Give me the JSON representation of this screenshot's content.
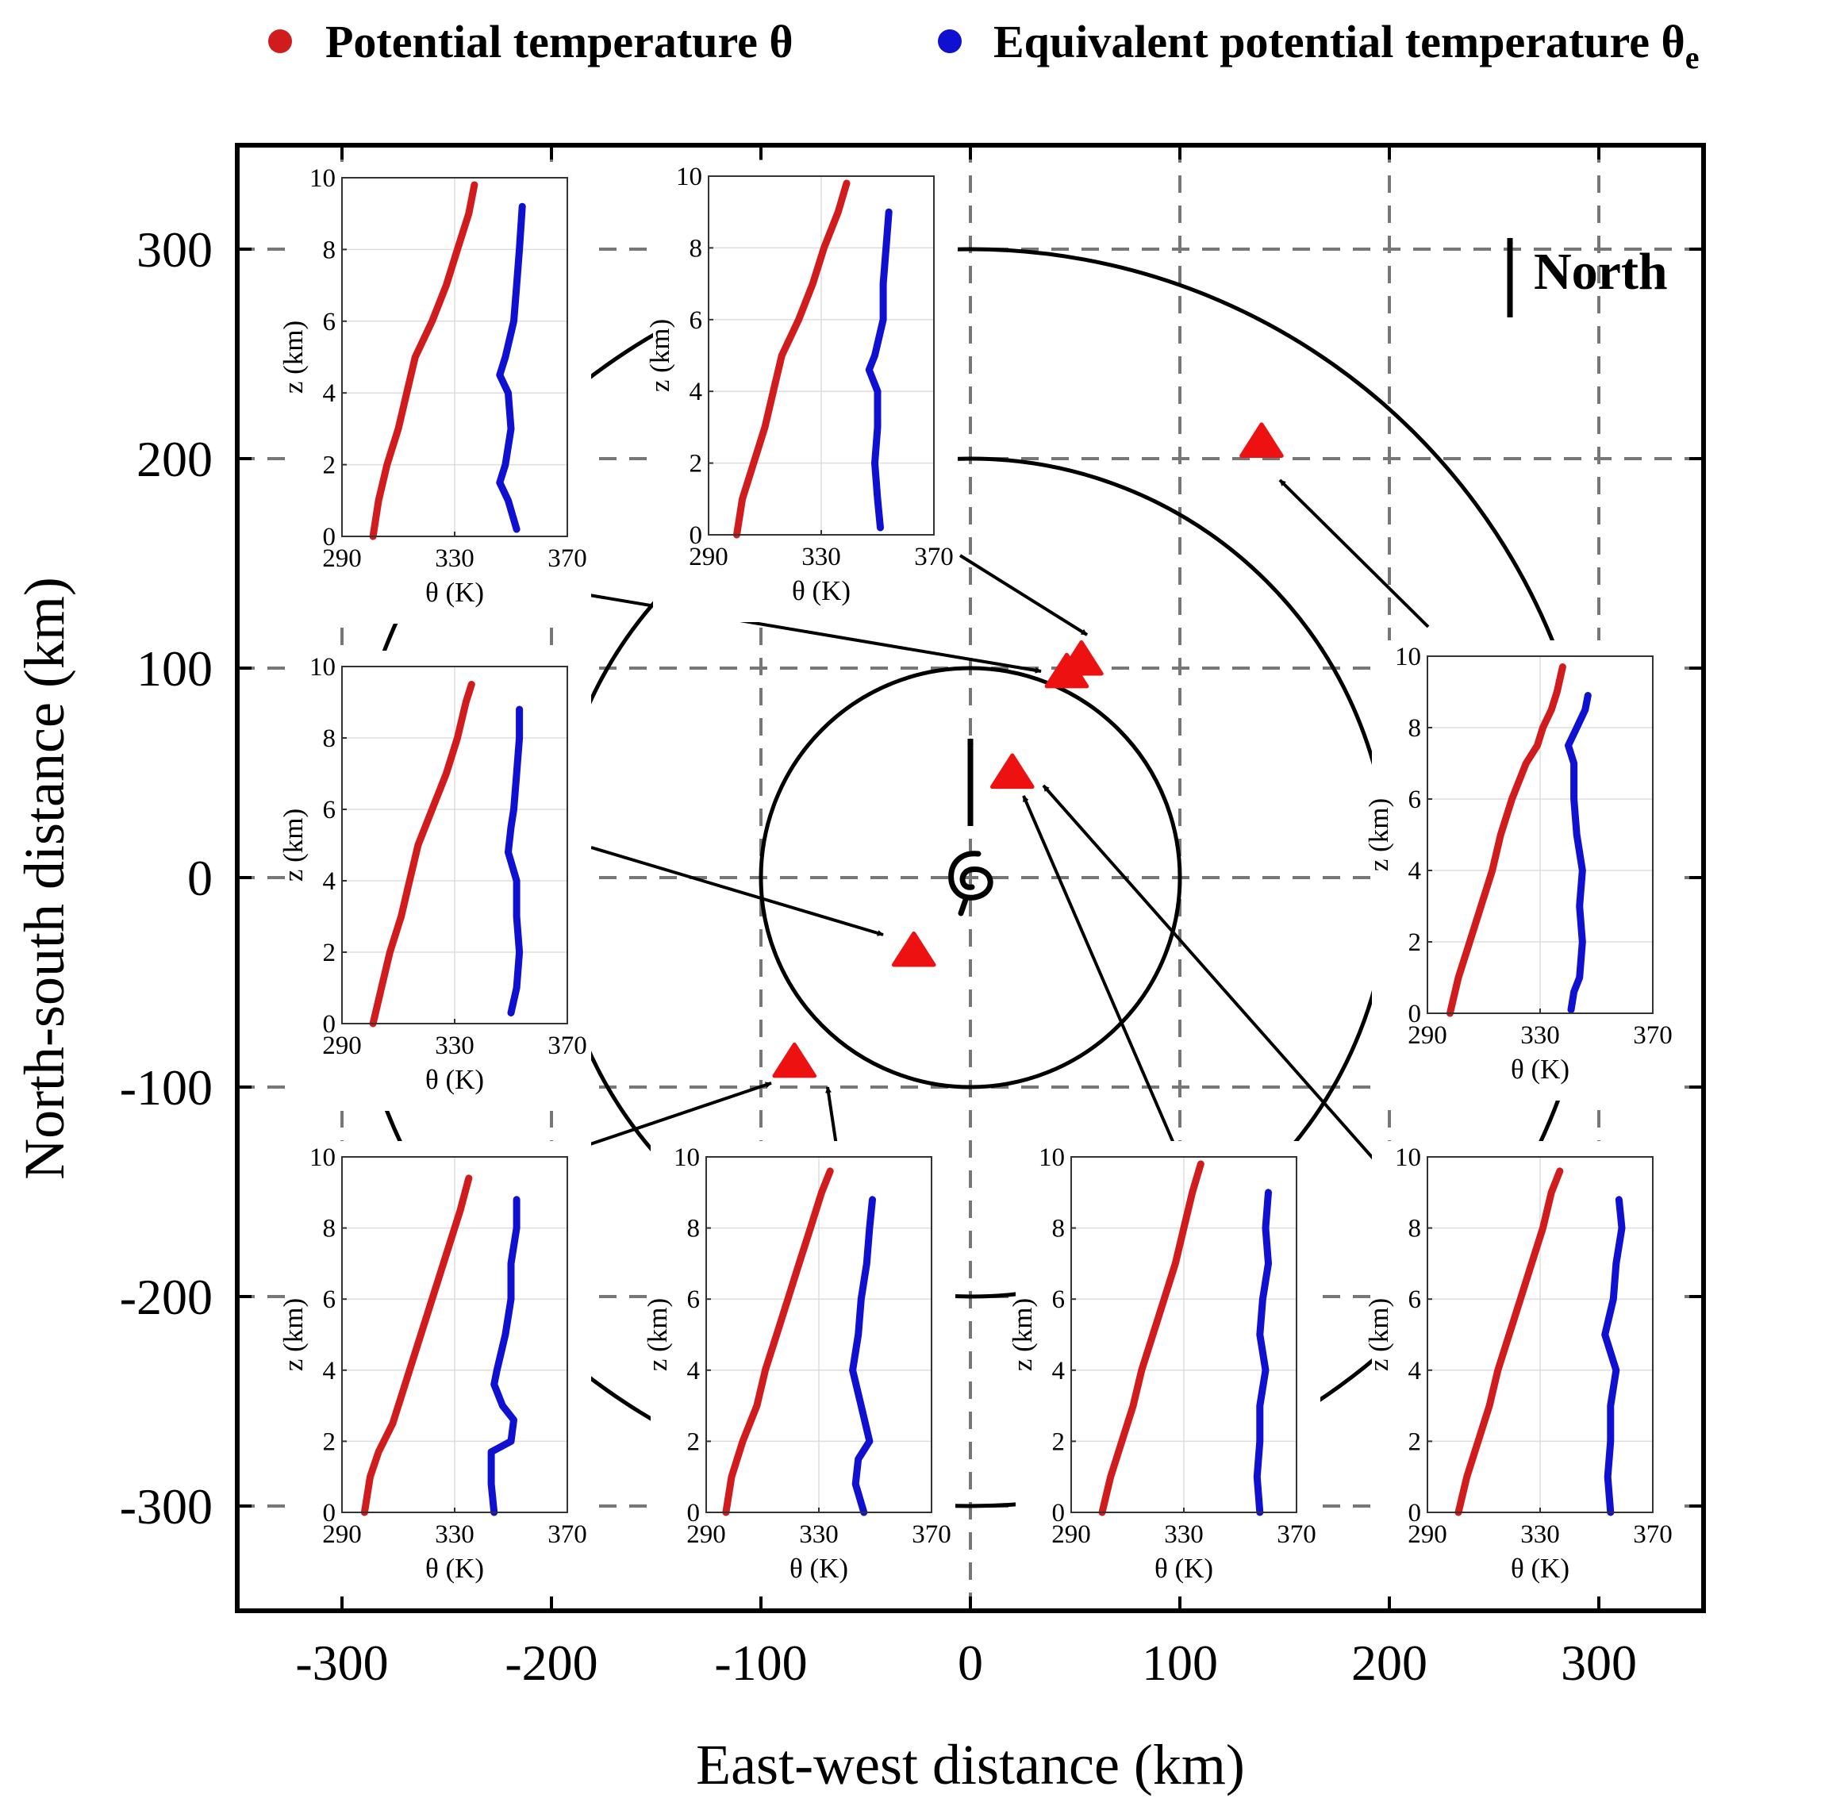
{
  "legend": {
    "theta_label": "Potential temperature θ",
    "theta_e_label": "Equivalent potential temperature θ",
    "theta_e_subscript": "e"
  },
  "colors": {
    "theta": "#d01c1c",
    "theta_e": "#1010d0",
    "marker": "#ee1111",
    "grid": "#777777",
    "axes": "#000000"
  },
  "north_label": "North",
  "chart_data": {
    "type": "scatter",
    "title": "",
    "xlabel": "East-west distance (km)",
    "ylabel": "North-south distance (km)",
    "xlim": [
      -350,
      350
    ],
    "ylim": [
      -350,
      350
    ],
    "xticks": [
      -300,
      -200,
      -100,
      0,
      100,
      200,
      300
    ],
    "yticks": [
      -300,
      -200,
      -100,
      0,
      100,
      200,
      300
    ],
    "grid_values": [
      -300,
      -200,
      -100,
      0,
      100,
      200,
      300
    ],
    "range_circles_km": [
      100,
      200,
      300
    ],
    "storm_center": [
      0,
      0
    ],
    "storm_motion": "north",
    "markers": [
      {
        "id": "m1",
        "x": 139,
        "y": 208
      },
      {
        "id": "m2",
        "x": 53,
        "y": 104
      },
      {
        "id": "m3",
        "x": 46,
        "y": 98
      },
      {
        "id": "m4",
        "x": 20,
        "y": 50
      },
      {
        "id": "m5",
        "x": -27,
        "y": -35
      },
      {
        "id": "m6",
        "x": -84,
        "y": -88
      }
    ],
    "insets": [
      {
        "id": "A",
        "marker": "m3",
        "xlabel": "θ (K)",
        "ylabel": "z (km)",
        "xticks": [
          290,
          330,
          370
        ],
        "yticks": [
          0,
          2,
          4,
          6,
          8,
          10
        ],
        "xlim": [
          290,
          370
        ],
        "ylim": [
          0,
          10
        ],
        "theta": [
          [
            301,
            0
          ],
          [
            303,
            1
          ],
          [
            306,
            2
          ],
          [
            310,
            3
          ],
          [
            313,
            4
          ],
          [
            316,
            5
          ],
          [
            322,
            6
          ],
          [
            327,
            7
          ],
          [
            331,
            8
          ],
          [
            335,
            9
          ],
          [
            337,
            9.8
          ]
        ],
        "theta_e": [
          [
            352,
            0.2
          ],
          [
            349,
            1
          ],
          [
            346,
            1.5
          ],
          [
            348,
            2
          ],
          [
            350,
            3
          ],
          [
            349,
            4
          ],
          [
            346,
            4.5
          ],
          [
            348,
            5
          ],
          [
            351,
            6
          ],
          [
            352,
            7
          ],
          [
            353,
            8
          ],
          [
            354,
            9.2
          ]
        ]
      },
      {
        "id": "B",
        "marker": "m2",
        "xlabel": "θ (K)",
        "ylabel": "z (km)",
        "xticks": [
          290,
          330,
          370
        ],
        "yticks": [
          0,
          2,
          4,
          6,
          8,
          10
        ],
        "xlim": [
          290,
          370
        ],
        "ylim": [
          0,
          10
        ],
        "theta": [
          [
            300,
            0
          ],
          [
            302,
            1
          ],
          [
            306,
            2
          ],
          [
            310,
            3
          ],
          [
            313,
            4
          ],
          [
            316,
            5
          ],
          [
            322,
            6
          ],
          [
            327,
            7
          ],
          [
            331,
            8
          ],
          [
            336,
            9
          ],
          [
            339,
            9.8
          ]
        ],
        "theta_e": [
          [
            351,
            0.2
          ],
          [
            350,
            1
          ],
          [
            349,
            2
          ],
          [
            350,
            3
          ],
          [
            350,
            4
          ],
          [
            347,
            4.6
          ],
          [
            349,
            5
          ],
          [
            352,
            6
          ],
          [
            352,
            7
          ],
          [
            353,
            8
          ],
          [
            354,
            9
          ]
        ]
      },
      {
        "id": "C",
        "marker": "m5",
        "xlabel": "θ (K)",
        "ylabel": "z (km)",
        "xticks": [
          290,
          330,
          370
        ],
        "yticks": [
          0,
          2,
          4,
          6,
          8,
          10
        ],
        "xlim": [
          290,
          370
        ],
        "ylim": [
          0,
          10
        ],
        "theta": [
          [
            301,
            0
          ],
          [
            304,
            1
          ],
          [
            307,
            2
          ],
          [
            311,
            3
          ],
          [
            314,
            4
          ],
          [
            317,
            5
          ],
          [
            322,
            6
          ],
          [
            327,
            7
          ],
          [
            331,
            8
          ],
          [
            334,
            9
          ],
          [
            336,
            9.5
          ]
        ],
        "theta_e": [
          [
            350,
            0.3
          ],
          [
            352,
            1
          ],
          [
            353,
            2
          ],
          [
            352,
            3
          ],
          [
            352,
            4
          ],
          [
            349,
            4.8
          ],
          [
            350,
            5.5
          ],
          [
            351,
            6
          ],
          [
            352,
            7
          ],
          [
            353,
            8
          ],
          [
            353,
            8.8
          ]
        ]
      },
      {
        "id": "D",
        "marker": "m1",
        "xlabel": "θ (K)",
        "ylabel": "z (km)",
        "xticks": [
          290,
          330,
          370
        ],
        "yticks": [
          0,
          2,
          4,
          6,
          8,
          10
        ],
        "xlim": [
          290,
          370
        ],
        "ylim": [
          0,
          10
        ],
        "theta": [
          [
            298,
            0
          ],
          [
            301,
            1
          ],
          [
            305,
            2
          ],
          [
            309,
            3
          ],
          [
            313,
            4
          ],
          [
            316,
            5
          ],
          [
            320,
            6
          ],
          [
            325,
            7
          ],
          [
            329,
            7.5
          ],
          [
            331,
            8
          ],
          [
            334,
            8.5
          ],
          [
            336,
            9
          ],
          [
            338,
            9.7
          ]
        ],
        "theta_e": [
          [
            341,
            0.1
          ],
          [
            342,
            0.6
          ],
          [
            344,
            1
          ],
          [
            345,
            2
          ],
          [
            344,
            3
          ],
          [
            345,
            4
          ],
          [
            343,
            5
          ],
          [
            342,
            6
          ],
          [
            342,
            7
          ],
          [
            340,
            7.5
          ],
          [
            343,
            8
          ],
          [
            346,
            8.5
          ],
          [
            347,
            8.9
          ]
        ]
      },
      {
        "id": "E",
        "marker": "m6",
        "xlabel": "θ (K)",
        "ylabel": "z (km)",
        "xticks": [
          290,
          330,
          370
        ],
        "yticks": [
          0,
          2,
          4,
          6,
          8,
          10
        ],
        "xlim": [
          290,
          370
        ],
        "ylim": [
          0,
          10
        ],
        "theta": [
          [
            298,
            0
          ],
          [
            300,
            1
          ],
          [
            303,
            1.7
          ],
          [
            308,
            2.5
          ],
          [
            312,
            3.5
          ],
          [
            316,
            4.5
          ],
          [
            320,
            5.5
          ],
          [
            324,
            6.5
          ],
          [
            328,
            7.5
          ],
          [
            332,
            8.5
          ],
          [
            335,
            9.4
          ]
        ],
        "theta_e": [
          [
            344,
            0
          ],
          [
            343,
            0.8
          ],
          [
            343,
            1.7
          ],
          [
            350,
            2
          ],
          [
            351,
            2.6
          ],
          [
            347,
            3
          ],
          [
            344,
            3.6
          ],
          [
            345,
            4
          ],
          [
            348,
            5
          ],
          [
            350,
            6
          ],
          [
            350,
            7
          ],
          [
            352,
            8
          ],
          [
            352,
            8.8
          ]
        ]
      },
      {
        "id": "F",
        "marker": "m6",
        "xlabel": "θ (K)",
        "ylabel": "z (km)",
        "xticks": [
          290,
          330,
          370
        ],
        "yticks": [
          0,
          2,
          4,
          6,
          8,
          10
        ],
        "xlim": [
          290,
          370
        ],
        "ylim": [
          0,
          10
        ],
        "theta": [
          [
            297,
            0
          ],
          [
            299,
            1
          ],
          [
            303,
            2
          ],
          [
            308,
            3
          ],
          [
            311,
            4
          ],
          [
            315,
            5
          ],
          [
            319,
            6
          ],
          [
            323,
            7
          ],
          [
            327,
            8
          ],
          [
            331,
            9
          ],
          [
            334,
            9.6
          ]
        ],
        "theta_e": [
          [
            346,
            0
          ],
          [
            343,
            0.8
          ],
          [
            344,
            1.5
          ],
          [
            348,
            2
          ],
          [
            345,
            3
          ],
          [
            342,
            4
          ],
          [
            344,
            5
          ],
          [
            345,
            6
          ],
          [
            347,
            7
          ],
          [
            348,
            8
          ],
          [
            349,
            8.8
          ]
        ]
      },
      {
        "id": "G",
        "marker": "m4",
        "xlabel": "θ (K)",
        "ylabel": "z (km)",
        "xticks": [
          290,
          330,
          370
        ],
        "yticks": [
          0,
          2,
          4,
          6,
          8,
          10
        ],
        "xlim": [
          290,
          370
        ],
        "ylim": [
          0,
          10
        ],
        "theta": [
          [
            301,
            0
          ],
          [
            304,
            1
          ],
          [
            308,
            2
          ],
          [
            312,
            3
          ],
          [
            315,
            4
          ],
          [
            319,
            5
          ],
          [
            323,
            6
          ],
          [
            327,
            7
          ],
          [
            330,
            8
          ],
          [
            333,
            9
          ],
          [
            336,
            9.8
          ]
        ],
        "theta_e": [
          [
            357,
            0
          ],
          [
            356,
            1
          ],
          [
            357,
            2
          ],
          [
            357,
            3
          ],
          [
            359,
            4
          ],
          [
            357,
            5
          ],
          [
            358,
            6
          ],
          [
            360,
            7
          ],
          [
            359,
            8
          ],
          [
            360,
            9
          ]
        ]
      },
      {
        "id": "H",
        "marker": "m4",
        "xlabel": "θ (K)",
        "ylabel": "z (km)",
        "xticks": [
          290,
          330,
          370
        ],
        "yticks": [
          0,
          2,
          4,
          6,
          8,
          10
        ],
        "xlim": [
          290,
          370
        ],
        "ylim": [
          0,
          10
        ],
        "theta": [
          [
            301,
            0
          ],
          [
            304,
            1
          ],
          [
            308,
            2
          ],
          [
            312,
            3
          ],
          [
            315,
            4
          ],
          [
            319,
            5
          ],
          [
            323,
            6
          ],
          [
            327,
            7
          ],
          [
            331,
            8
          ],
          [
            334,
            9
          ],
          [
            337,
            9.6
          ]
        ],
        "theta_e": [
          [
            355,
            0
          ],
          [
            354,
            1
          ],
          [
            355,
            2
          ],
          [
            355,
            3
          ],
          [
            357,
            4
          ],
          [
            353,
            5
          ],
          [
            356,
            6
          ],
          [
            357,
            7
          ],
          [
            359,
            8
          ],
          [
            358,
            8.8
          ]
        ]
      }
    ]
  }
}
